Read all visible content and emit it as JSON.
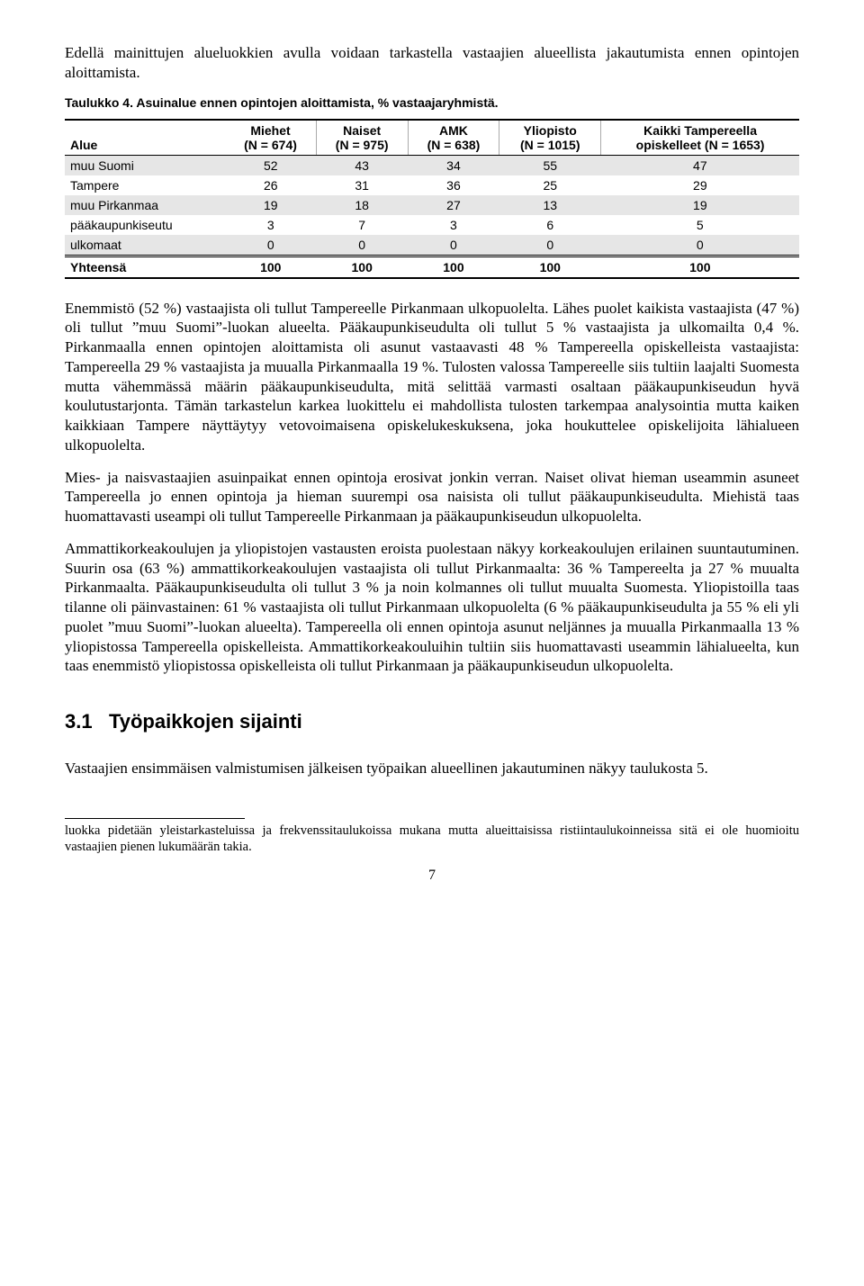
{
  "intro": "Edellä mainittujen alueluokkien avulla voidaan tarkastella vastaajien alueellista jakautumista ennen opintojen aloittamista.",
  "table": {
    "caption": "Taulukko 4. Asuinalue ennen opintojen aloittamista, % vastaajaryhmistä.",
    "columns": [
      {
        "top": "",
        "bottom": "Alue"
      },
      {
        "top": "Miehet",
        "bottom": "(N = 674)"
      },
      {
        "top": "Naiset",
        "bottom": "(N = 975)"
      },
      {
        "top": "AMK",
        "bottom": "(N = 638)"
      },
      {
        "top": "Yliopisto",
        "bottom": "(N = 1015)"
      },
      {
        "top": "Kaikki Tampereella",
        "bottom": "opiskelleet (N = 1653)"
      }
    ],
    "rows": [
      {
        "label": "muu Suomi",
        "vals": [
          52,
          43,
          34,
          55,
          47
        ],
        "shaded": true
      },
      {
        "label": "Tampere",
        "vals": [
          26,
          31,
          36,
          25,
          29
        ],
        "shaded": false
      },
      {
        "label": "muu Pirkanmaa",
        "vals": [
          19,
          18,
          27,
          13,
          19
        ],
        "shaded": true
      },
      {
        "label": "pääkaupunkiseutu",
        "vals": [
          3,
          7,
          3,
          6,
          5
        ],
        "shaded": false
      },
      {
        "label": "ulkomaat",
        "vals": [
          0,
          0,
          0,
          0,
          0
        ],
        "shaded": true
      }
    ],
    "total": {
      "label": "Yhteensä",
      "vals": [
        100,
        100,
        100,
        100,
        100
      ]
    }
  },
  "body_paras": [
    "Enemmistö (52 %) vastaajista oli tullut Tampereelle Pirkanmaan ulkopuolelta. Lähes puolet kaikista vastaajista (47 %) oli tullut ”muu Suomi”-luokan alueelta. Pääkaupunkiseudulta oli tullut 5 % vastaajista ja ulkomailta 0,4 %. Pirkanmaalla ennen opintojen aloittamista oli asunut vastaavasti 48 % Tampereella opiskelleista vastaajista: Tampereella 29 % vastaajista ja muualla Pirkanmaalla 19 %. Tulosten valossa Tampereelle siis tultiin laajalti Suomesta mutta vähemmässä määrin pääkaupunkiseudulta, mitä selittää varmasti osaltaan pääkaupunkiseudun hyvä koulutustarjonta. Tämän tarkastelun karkea luokittelu ei mahdollista tulosten tarkempaa analysointia mutta kaiken kaikkiaan Tampere näyttäytyy vetovoimaisena opiskelukeskuksena, joka houkuttelee opiskelijoita lähialueen ulkopuolelta.",
    "Mies- ja naisvastaajien asuinpaikat ennen opintoja erosivat jonkin verran. Naiset olivat hieman useammin asuneet Tampereella jo ennen opintoja ja hieman suurempi osa naisista oli tullut pääkaupunkiseudulta. Miehistä taas huomattavasti useampi oli tullut Tampereelle Pirkanmaan ja pääkaupunkiseudun ulkopuolelta.",
    "Ammattikorkeakoulujen ja yliopistojen vastausten eroista puolestaan näkyy korkeakoulujen erilainen suuntautuminen. Suurin osa (63 %) ammattikorkeakoulujen vastaajista oli tullut Pirkanmaalta: 36 % Tampereelta ja 27 % muualta Pirkanmaalta. Pääkaupunkiseudulta oli tullut 3 % ja noin kolmannes oli tullut muualta Suomesta. Yliopistoilla taas tilanne oli päinvastainen: 61 % vastaajista oli tullut Pirkanmaan ulkopuolelta (6 % pääkaupunkiseudulta ja 55 % eli yli puolet ”muu Suomi”-luokan alueelta). Tampereella oli ennen opintoja asunut neljännes ja muualla Pirkanmaalla 13 % yliopistossa Tampereella opiskelleista. Ammattikorkeakouluihin tultiin siis huomattavasti useammin lähialueelta, kun taas enemmistö yliopistossa opiskelleista oli tullut Pirkanmaan ja pääkaupunkiseudun ulkopuolelta."
  ],
  "heading": {
    "num": "3.1",
    "text": "Työpaikkojen sijainti"
  },
  "after_heading": "Vastaajien ensimmäisen valmistumisen jälkeisen työpaikan alueellinen jakautuminen näkyy taulukosta 5.",
  "footnote": "luokka pidetään yleistarkasteluissa ja frekvenssitaulukoissa mukana mutta alueittaisissa ristiintaulukoinneissa sitä ei ole huomioitu vastaajien pienen lukumäärän takia.",
  "page_num": "7"
}
